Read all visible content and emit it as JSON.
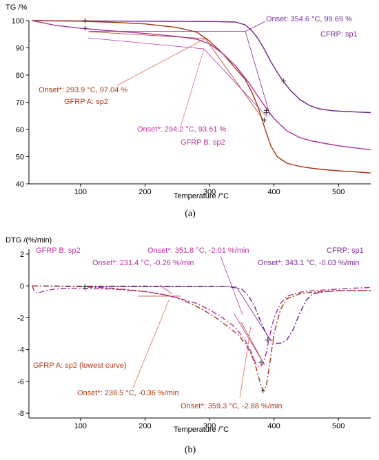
{
  "colors": {
    "cfrp": "#6a1e8c",
    "gfrp_a": "#a83214",
    "gfrp_b": "#b0309a",
    "ann_cfrp": "#7a2a9a",
    "ann_a": "#b03a14",
    "ann_b": "#c030a0"
  },
  "chart_data": [
    {
      "type": "line",
      "panel_label": "(a)",
      "ylabel": "TG /%",
      "xlabel": "Temperature /°C",
      "xlim": [
        20,
        550
      ],
      "ylim": [
        40,
        100
      ],
      "xticks": [
        100,
        200,
        300,
        400,
        500
      ],
      "yticks": [
        40,
        50,
        60,
        70,
        80,
        90,
        100
      ],
      "grid": false,
      "series": [
        {
          "name": "CFRP: sp1",
          "color_key": "cfrp",
          "style": "solid",
          "x": [
            25,
            100,
            200,
            300,
            340,
            355,
            365,
            375,
            385,
            395,
            405,
            415,
            425,
            440,
            455,
            470,
            490,
            510,
            530,
            550
          ],
          "y": [
            100,
            99.9,
            99.8,
            99.7,
            99.5,
            98.5,
            96.5,
            93.5,
            89.5,
            85.0,
            81.0,
            77.5,
            74.5,
            71.0,
            68.8,
            67.6,
            66.9,
            66.6,
            66.4,
            66.2
          ],
          "markers": [
            [
              107,
              100
            ],
            [
              388,
              67
            ],
            [
              415,
              77.8
            ]
          ]
        },
        {
          "name": "GFRP A: sp2",
          "color_key": "gfrp_a",
          "style": "solid",
          "x": [
            25,
            100,
            150,
            200,
            250,
            280,
            300,
            320,
            340,
            355,
            365,
            375,
            385,
            395,
            405,
            420,
            440,
            460,
            480,
            500,
            520,
            550
          ],
          "y": [
            100,
            99.8,
            99.4,
            98.8,
            97.5,
            95.8,
            92.5,
            88.0,
            82.5,
            78.5,
            74.0,
            68.5,
            61.0,
            54.0,
            50.0,
            47.6,
            46.4,
            45.7,
            45.2,
            44.8,
            44.5,
            44.0
          ],
          "markers": [
            [
              107,
              100
            ],
            [
              385,
              63.5
            ]
          ]
        },
        {
          "name": "GFRP B: sp2",
          "color_key": "gfrp_b",
          "style": "solid",
          "x": [
            25,
            60,
            100,
            150,
            200,
            250,
            280,
            300,
            320,
            340,
            360,
            380,
            400,
            420,
            440,
            460,
            480,
            500,
            520,
            550
          ],
          "y": [
            100,
            98.3,
            97.2,
            96.2,
            95.3,
            94.2,
            93.2,
            91.5,
            88.0,
            83.5,
            77.5,
            70.5,
            64.0,
            59.5,
            57.0,
            55.7,
            54.8,
            54.0,
            53.4,
            52.5
          ],
          "markers": [
            [
              107,
              97.2
            ],
            [
              388,
              66.2
            ]
          ]
        }
      ],
      "annotations": [
        {
          "text": "Onset: 354.6 °C, 99.69 %",
          "color_key": "ann_cfrp"
        },
        {
          "text": "CFRP: sp1",
          "color_key": "ann_cfrp"
        },
        {
          "text": "Onset*: 293.9 °C, 97.04 %",
          "color_key": "ann_a"
        },
        {
          "text": "GFRP A: sp2",
          "color_key": "ann_a"
        },
        {
          "text": "Onset*: 294.2 °C, 93.61 %",
          "color_key": "ann_b"
        },
        {
          "text": "GFRP B: sp2",
          "color_key": "ann_b"
        }
      ]
    },
    {
      "type": "line",
      "panel_label": "(b)",
      "ylabel": "DTG /(%/min)",
      "xlabel": "Temperature /°C",
      "xlim": [
        20,
        550
      ],
      "ylim": [
        -8.3,
        2.3
      ],
      "xticks": [
        100,
        200,
        300,
        400,
        500
      ],
      "yticks": [
        -8,
        -6,
        -4,
        -2,
        0,
        2
      ],
      "grid": false,
      "series": [
        {
          "name": "CFRP: sp1",
          "color_key": "cfrp",
          "style": "dashdot",
          "x": [
            25,
            100,
            200,
            300,
            330,
            350,
            360,
            370,
            380,
            390,
            400,
            410,
            420,
            430,
            440,
            450,
            460,
            480,
            500,
            520,
            550
          ],
          "y": [
            0,
            -0.02,
            -0.02,
            -0.03,
            -0.05,
            -0.2,
            -0.6,
            -1.3,
            -2.3,
            -3.2,
            -3.6,
            -3.6,
            -3.4,
            -2.7,
            -1.7,
            -0.9,
            -0.5,
            -0.35,
            -0.3,
            -0.3,
            -0.3
          ],
          "markers": [
            [
              107,
              -0.05
            ],
            [
              390,
              -3.4
            ]
          ]
        },
        {
          "name": "GFRP A: sp2 (lowest curve)",
          "color_key": "gfrp_a",
          "style": "dashdot",
          "x": [
            25,
            100,
            150,
            200,
            230,
            250,
            270,
            290,
            310,
            330,
            345,
            355,
            365,
            372,
            378,
            383,
            388,
            393,
            400,
            410,
            420,
            440,
            460,
            480,
            500,
            520,
            550
          ],
          "y": [
            0,
            -0.05,
            -0.15,
            -0.35,
            -0.55,
            -0.75,
            -1.1,
            -1.5,
            -2.0,
            -2.6,
            -3.1,
            -3.6,
            -4.3,
            -5.1,
            -6.0,
            -6.6,
            -6.3,
            -5.0,
            -3.0,
            -1.5,
            -0.8,
            -0.5,
            -0.4,
            -0.35,
            -0.3,
            -0.3,
            -0.3
          ],
          "markers": [
            [
              107,
              -0.05
            ],
            [
              383,
              -6.6
            ]
          ]
        },
        {
          "name": "GFRP B: sp2",
          "color_key": "gfrp_b",
          "style": "dashdot",
          "x": [
            25,
            28,
            32,
            38,
            45,
            60,
            80,
            100,
            150,
            200,
            230,
            250,
            280,
            300,
            320,
            340,
            355,
            365,
            372,
            378,
            383,
            388,
            393,
            400,
            410,
            420,
            440,
            460,
            480,
            500,
            520,
            550
          ],
          "y": [
            0,
            -0.3,
            -0.45,
            -0.4,
            -0.3,
            -0.2,
            -0.15,
            -0.15,
            -0.2,
            -0.35,
            -0.55,
            -0.75,
            -1.1,
            -1.5,
            -2.0,
            -2.6,
            -3.4,
            -4.2,
            -4.9,
            -5.1,
            -4.9,
            -4.2,
            -3.2,
            -2.0,
            -1.1,
            -0.65,
            -0.4,
            -0.3,
            -0.25,
            -0.2,
            -0.15,
            -0.1
          ],
          "markers": [
            [
              107,
              -0.15
            ],
            [
              380,
              -4.8
            ]
          ]
        }
      ],
      "annotations": [
        {
          "text": "GFRP B: sp2",
          "color_key": "ann_b"
        },
        {
          "text": "Onset*: 351.8 °C, -2.01 %/min",
          "color_key": "ann_b"
        },
        {
          "text": "Onset*: 231.4 °C, -0.26 %/min",
          "color_key": "ann_b"
        },
        {
          "text": "CFRP: sp1",
          "color_key": "ann_cfrp"
        },
        {
          "text": "Onset*: 343.1 °C, -0.03 %/min",
          "color_key": "ann_cfrp"
        },
        {
          "text": "GFRP A: sp2  (lowest curve)",
          "color_key": "ann_a"
        },
        {
          "text": "Onset*: 238.5 °C, -0.36 %/min",
          "color_key": "ann_a"
        },
        {
          "text": "Onset*: 359.3 °C, -2.88 %/min",
          "color_key": "ann_a"
        }
      ]
    }
  ]
}
